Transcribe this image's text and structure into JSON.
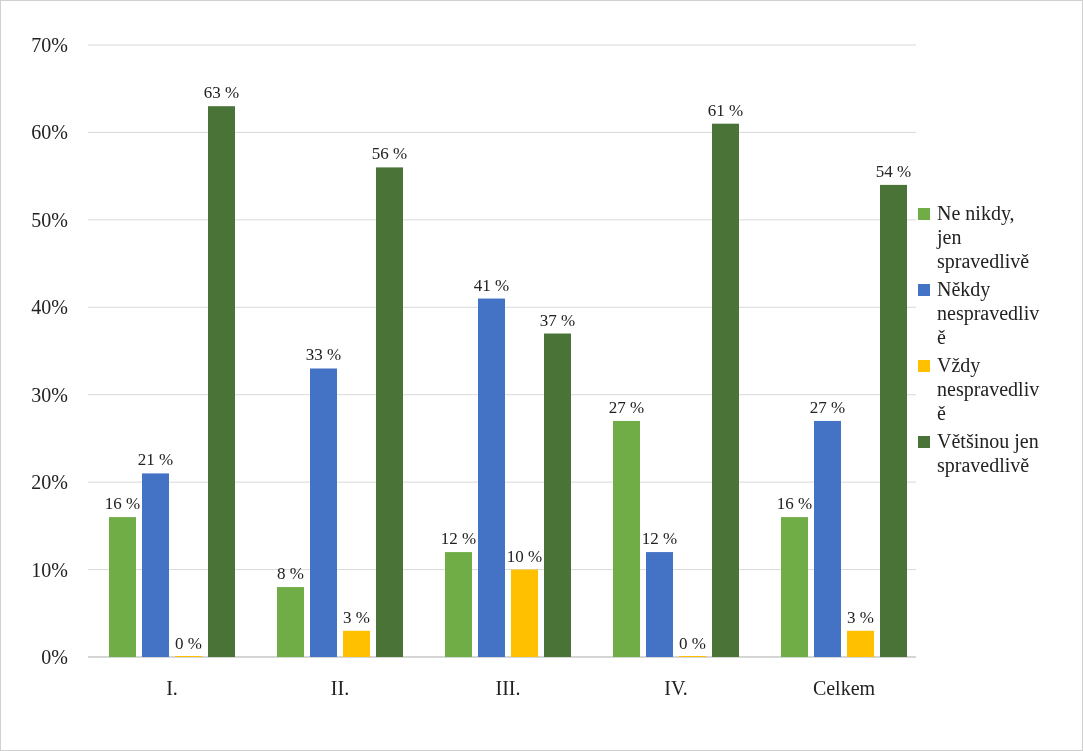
{
  "chart_data": {
    "type": "bar",
    "categories": [
      "I.",
      "II.",
      "III.",
      "IV.",
      "Celkem"
    ],
    "series": [
      {
        "name": "Ne nikdy, jen spravedlivě",
        "color": "#70ad47",
        "values": [
          16,
          8,
          12,
          27,
          16
        ],
        "value_labels": [
          "16 %",
          "8 %",
          "12 %",
          "27 %",
          "16 %"
        ]
      },
      {
        "name": "Někdy nespravedlivě",
        "color": "#4472c4",
        "values": [
          21,
          33,
          41,
          12,
          27
        ],
        "value_labels": [
          "21 %",
          "33 %",
          "41 %",
          "12 %",
          "27 %"
        ]
      },
      {
        "name": "Vždy nespravedlivě",
        "color": "#ffc000",
        "values": [
          0,
          3,
          10,
          0,
          3
        ],
        "value_labels": [
          "0 %",
          "3 %",
          "10 %",
          "0 %",
          "3 %"
        ]
      },
      {
        "name": "Většinou jen spravedlivě",
        "color": "#4a7338",
        "values": [
          63,
          56,
          37,
          61,
          54
        ],
        "value_labels": [
          "63 %",
          "56 %",
          "37 %",
          "61 %",
          "54 %"
        ]
      }
    ],
    "ylim": [
      0,
      70
    ],
    "yticks": [
      {
        "value": 0,
        "label": "0%"
      },
      {
        "value": 10,
        "label": "10%"
      },
      {
        "value": 20,
        "label": "20%"
      },
      {
        "value": 30,
        "label": "30%"
      },
      {
        "value": 40,
        "label": "40%"
      },
      {
        "value": 50,
        "label": "50%"
      },
      {
        "value": 60,
        "label": "60%"
      },
      {
        "value": 70,
        "label": "70%"
      }
    ],
    "grid": "y",
    "legend": "right"
  }
}
